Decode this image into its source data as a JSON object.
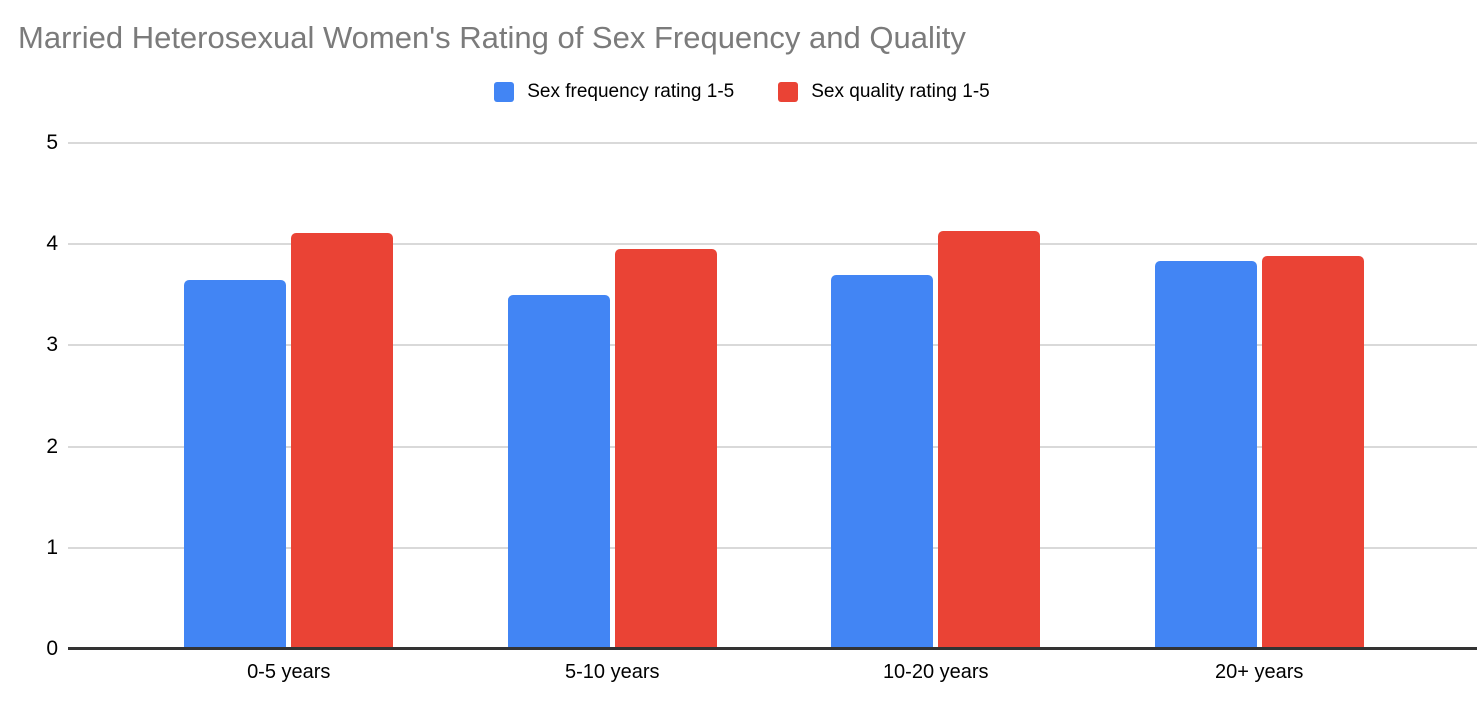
{
  "title": "Married Heterosexual Women's Rating of Sex Frequency and Quality",
  "legend": {
    "items": [
      {
        "label": "Sex frequency rating 1-5",
        "color": "#4285F4"
      },
      {
        "label": "Sex quality rating 1-5",
        "color": "#EA4335"
      }
    ],
    "position": "top-center"
  },
  "chart_data": {
    "type": "bar",
    "title": "Married Heterosexual Women's Rating of Sex Frequency and Quality",
    "categories": [
      "0-5 years",
      "5-10 years",
      "10-20 years",
      "20+ years"
    ],
    "series": [
      {
        "name": "Sex frequency rating 1-5",
        "color": "#4285F4",
        "values": [
          3.65,
          3.5,
          3.7,
          3.83
        ]
      },
      {
        "name": "Sex quality rating 1-5",
        "color": "#EA4335",
        "values": [
          4.11,
          3.95,
          4.13,
          3.88
        ]
      }
    ],
    "xlabel": "",
    "ylabel": "",
    "ylim": [
      0,
      5
    ],
    "yticks": [
      0,
      1,
      2,
      3,
      4,
      5
    ],
    "grid": "horizontal",
    "gridline_color": "#d9d9d9",
    "axis_line_color": "#333333",
    "title_color": "#7b7b7b",
    "legend_position": "top"
  }
}
